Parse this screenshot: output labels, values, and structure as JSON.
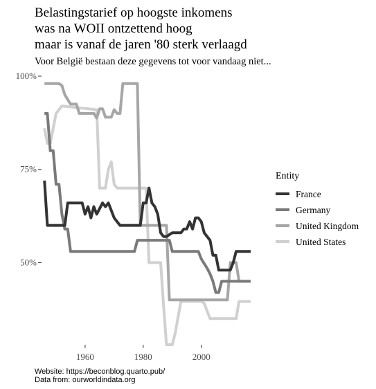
{
  "chart_data": {
    "type": "line",
    "title_lines": [
      "Belastingstarief op hoogste inkomens",
      "was na WOII ontzettend hoog",
      "maar is vanaf de jaren '80 sterk verlaagd"
    ],
    "subtitle": "Voor België bestaan deze gegevens tot voor vandaag niet...",
    "caption_lines": [
      "Website: https://beconblog.quarto.pub/",
      "Data from: ourworldindata.org"
    ],
    "xlim": [
      1945,
      2017
    ],
    "ylim": [
      28,
      100
    ],
    "x_ticks": [
      {
        "value": 1960,
        "label": "1960"
      },
      {
        "value": 1980,
        "label": "1980"
      },
      {
        "value": 2000,
        "label": "2000"
      }
    ],
    "y_ticks": [
      {
        "value": 100,
        "label": "100%"
      },
      {
        "value": 75,
        "label": "75%"
      },
      {
        "value": 50,
        "label": "50%"
      }
    ],
    "grid": false,
    "legend_title": "Entity",
    "legend_position": "right",
    "series": [
      {
        "name": "United States",
        "color": "#d0d0d0",
        "points": [
          [
            1946,
            86
          ],
          [
            1947,
            82
          ],
          [
            1948,
            82
          ],
          [
            1950,
            90
          ],
          [
            1952,
            92
          ],
          [
            1964,
            91
          ],
          [
            1965,
            70
          ],
          [
            1967,
            70
          ],
          [
            1968,
            75
          ],
          [
            1969,
            77
          ],
          [
            1970,
            71
          ],
          [
            1971,
            70
          ],
          [
            1981,
            70
          ],
          [
            1982,
            50
          ],
          [
            1986,
            50
          ],
          [
            1987,
            38.5
          ],
          [
            1988,
            28
          ],
          [
            1990,
            28
          ],
          [
            1991,
            31
          ],
          [
            1993,
            39.6
          ],
          [
            2000,
            39.6
          ],
          [
            2001,
            39.1
          ],
          [
            2003,
            35
          ],
          [
            2012,
            35
          ],
          [
            2013,
            39.6
          ],
          [
            2017,
            39.6
          ]
        ]
      },
      {
        "name": "United Kingdom",
        "color": "#a6a6a6",
        "points": [
          [
            1946,
            98
          ],
          [
            1951,
            98
          ],
          [
            1952,
            97.5
          ],
          [
            1953,
            95
          ],
          [
            1955,
            92.5
          ],
          [
            1957,
            92.5
          ],
          [
            1958,
            90
          ],
          [
            1963,
            90
          ],
          [
            1964,
            88.75
          ],
          [
            1965,
            91.25
          ],
          [
            1966,
            91.25
          ],
          [
            1967,
            89
          ],
          [
            1969,
            89
          ],
          [
            1970,
            91
          ],
          [
            1971,
            90
          ],
          [
            1972,
            90
          ],
          [
            1973,
            98
          ],
          [
            1978,
            98
          ],
          [
            1979,
            60
          ],
          [
            1988,
            60
          ],
          [
            1989,
            40
          ],
          [
            2009,
            40
          ],
          [
            2010,
            50
          ],
          [
            2012,
            50
          ],
          [
            2013,
            45
          ],
          [
            2017,
            45
          ]
        ]
      },
      {
        "name": "Germany",
        "color": "#7a7a7a",
        "points": [
          [
            1946,
            90
          ],
          [
            1947,
            90
          ],
          [
            1948,
            80
          ],
          [
            1949,
            80
          ],
          [
            1950,
            71
          ],
          [
            1951,
            71
          ],
          [
            1952,
            63
          ],
          [
            1953,
            59
          ],
          [
            1954,
            59
          ],
          [
            1955,
            53
          ],
          [
            1977,
            53
          ],
          [
            1978,
            56
          ],
          [
            1989,
            56
          ],
          [
            1990,
            53
          ],
          [
            1999,
            53
          ],
          [
            2000,
            51
          ],
          [
            2002,
            48.5
          ],
          [
            2003,
            47
          ],
          [
            2004,
            45
          ],
          [
            2005,
            42
          ],
          [
            2006,
            42
          ],
          [
            2007,
            45
          ],
          [
            2017,
            45
          ]
        ]
      },
      {
        "name": "France",
        "color": "#333333",
        "points": [
          [
            1946,
            72
          ],
          [
            1947,
            60
          ],
          [
            1953,
            60
          ],
          [
            1954,
            66
          ],
          [
            1959,
            66
          ],
          [
            1960,
            63
          ],
          [
            1961,
            65
          ],
          [
            1962,
            62
          ],
          [
            1963,
            65
          ],
          [
            1964,
            63
          ],
          [
            1966,
            66
          ],
          [
            1967,
            65
          ],
          [
            1968,
            66
          ],
          [
            1969,
            64
          ],
          [
            1970,
            62
          ],
          [
            1972,
            60
          ],
          [
            1979,
            60
          ],
          [
            1980,
            66
          ],
          [
            1981,
            66
          ],
          [
            1982,
            70
          ],
          [
            1983,
            66
          ],
          [
            1984,
            65
          ],
          [
            1985,
            63
          ],
          [
            1986,
            58
          ],
          [
            1987,
            57
          ],
          [
            1988,
            57
          ],
          [
            1990,
            58
          ],
          [
            1993,
            58
          ],
          [
            1994,
            59
          ],
          [
            1995,
            59
          ],
          [
            1996,
            61
          ],
          [
            1997,
            59
          ],
          [
            1998,
            62
          ],
          [
            1999,
            62
          ],
          [
            2000,
            61
          ],
          [
            2001,
            58
          ],
          [
            2003,
            56
          ],
          [
            2004,
            52
          ],
          [
            2005,
            52
          ],
          [
            2006,
            48
          ],
          [
            2010,
            48
          ],
          [
            2011,
            50
          ],
          [
            2012,
            53
          ],
          [
            2017,
            53
          ]
        ]
      }
    ],
    "legend_order": [
      "France",
      "Germany",
      "United Kingdom",
      "United States"
    ]
  }
}
